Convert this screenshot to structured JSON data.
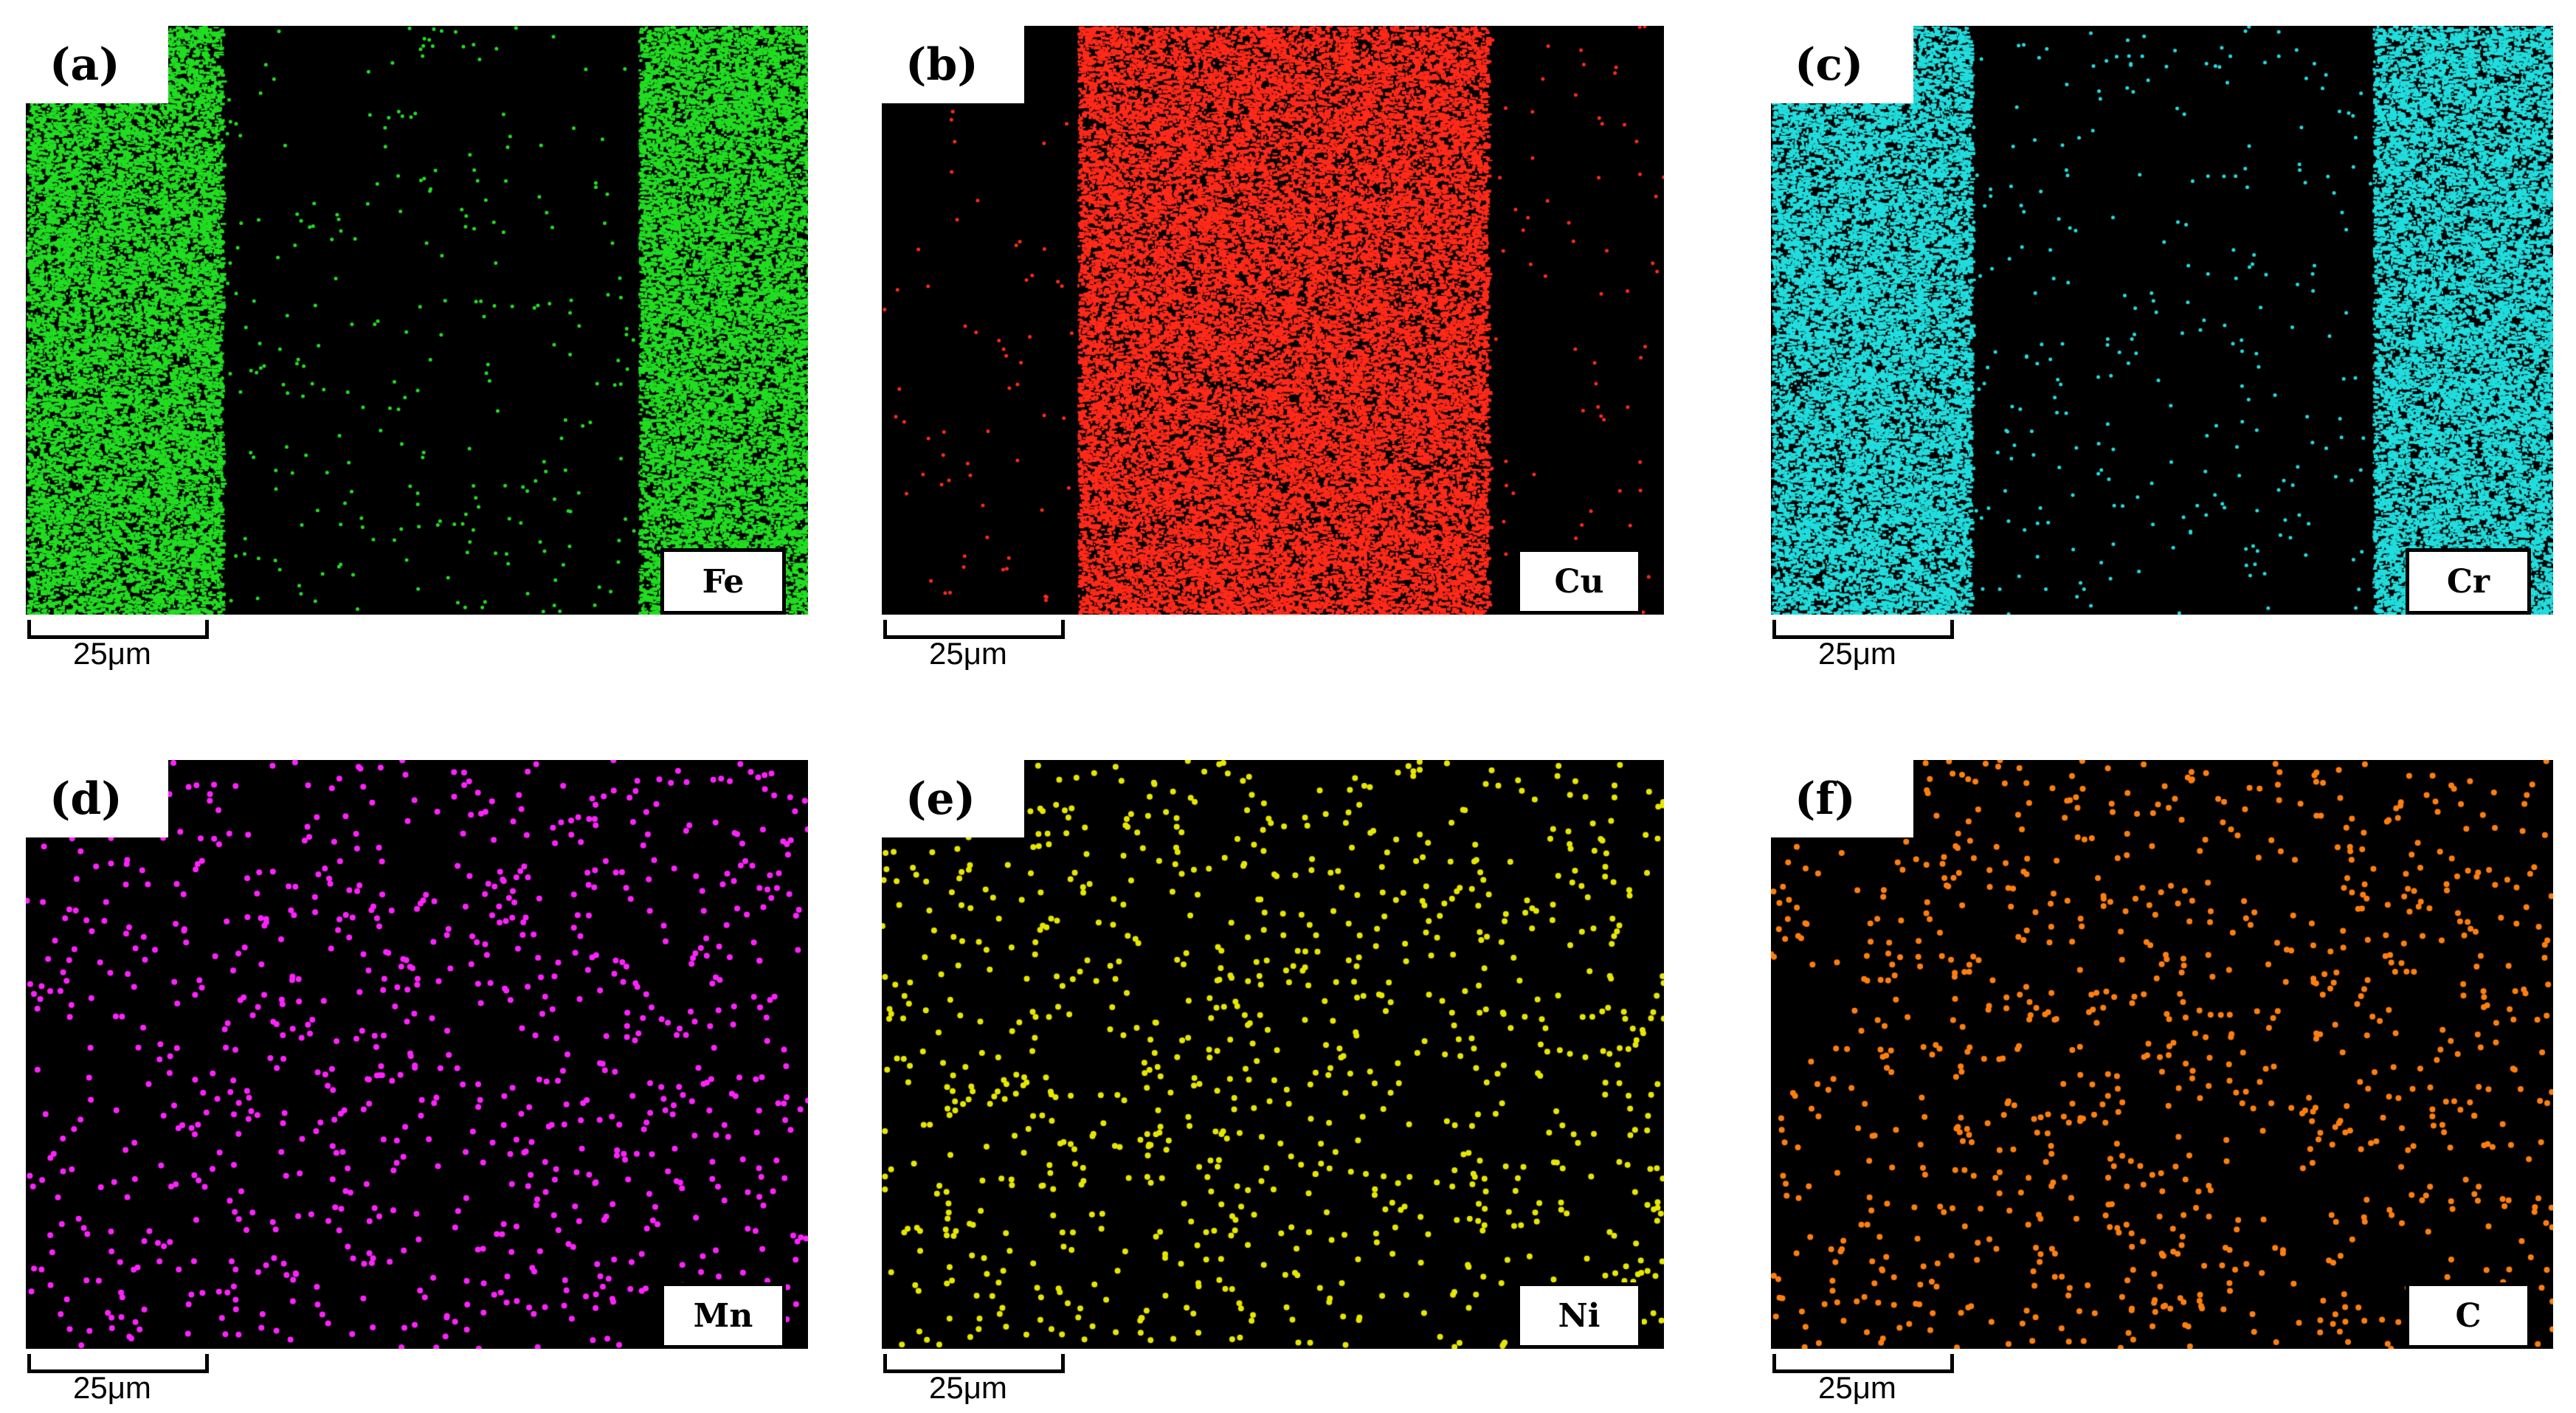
{
  "scale_label": "25μm",
  "panels": [
    {
      "label": "(a)",
      "element": "Fe",
      "color": "#22dd22",
      "distribution": "outer-bands"
    },
    {
      "label": "(b)",
      "element": "Cu",
      "color": "#ff2a1a",
      "distribution": "center-band"
    },
    {
      "label": "(c)",
      "element": "Cr",
      "color": "#22dddd",
      "distribution": "outer-bands"
    },
    {
      "label": "(d)",
      "element": "Mn",
      "color": "#ff22ff",
      "distribution": "uniform-sparse"
    },
    {
      "label": "(e)",
      "element": "Ni",
      "color": "#e6e600",
      "distribution": "uniform-sparse"
    },
    {
      "label": "(f)",
      "element": "C",
      "color": "#ff7f0e",
      "distribution": "uniform-sparse"
    }
  ]
}
